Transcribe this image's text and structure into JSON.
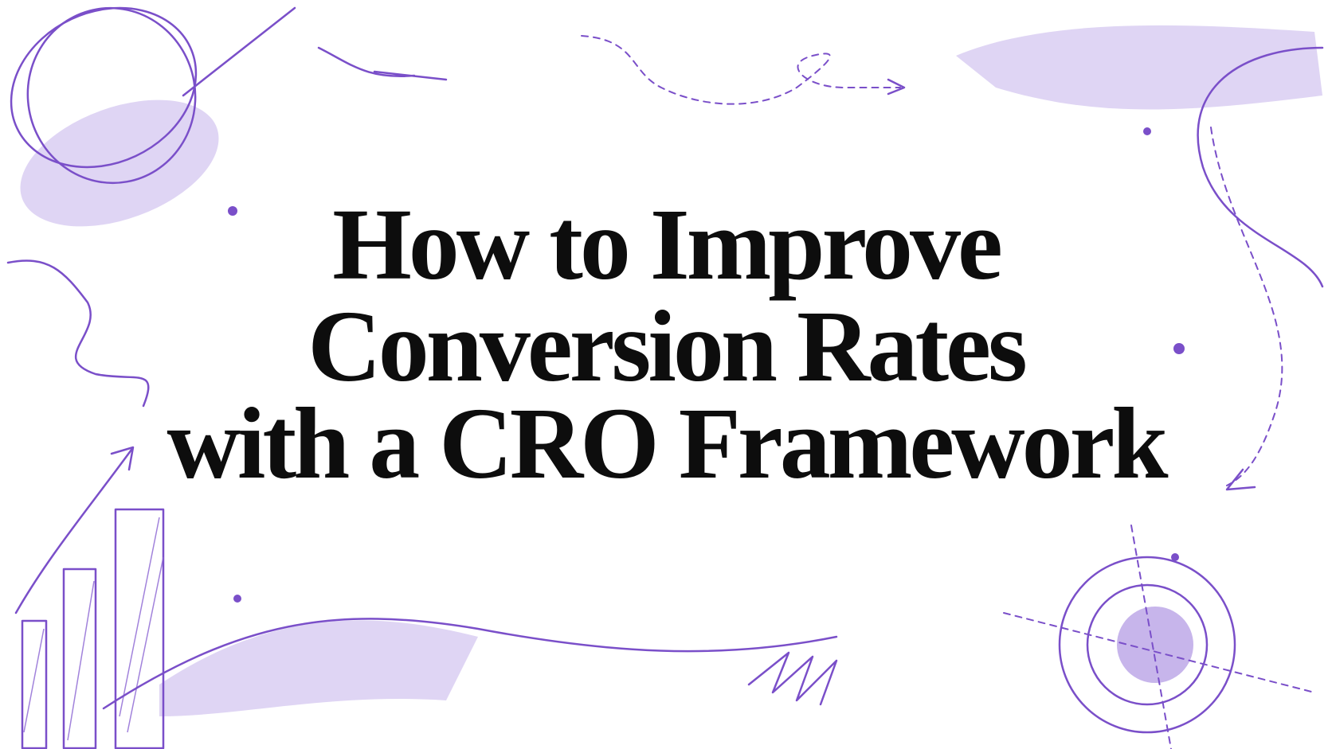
{
  "title": {
    "lines": [
      "How to Improve",
      "Conversion Rates",
      "with a CRO Framework"
    ]
  }
}
